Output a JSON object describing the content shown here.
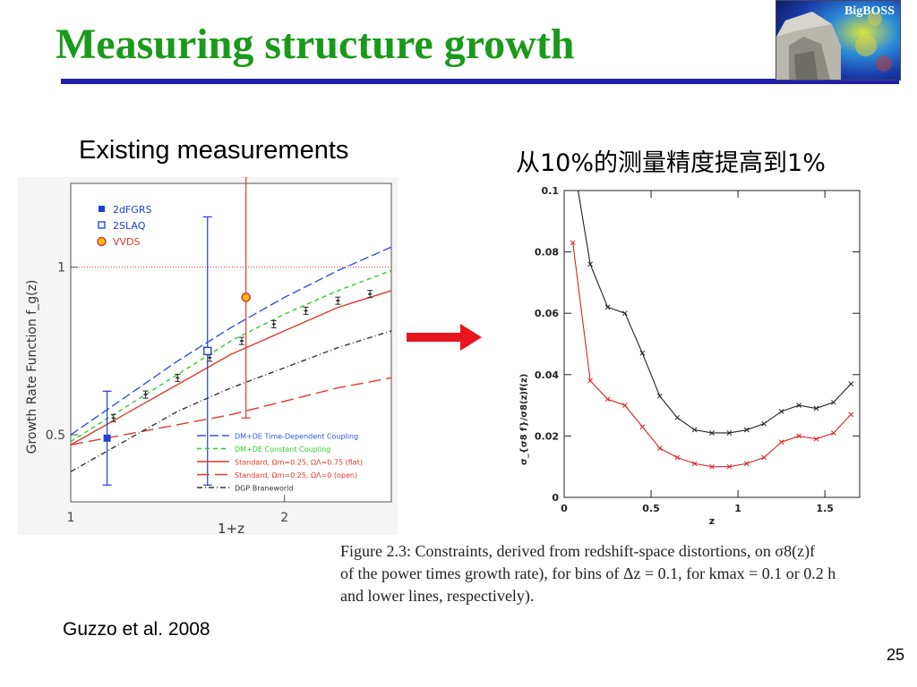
{
  "slide": {
    "title": "Measuring structure growth",
    "logo_text": "BigBOSS",
    "left_heading": "Existing measurements",
    "right_heading": "从10%的测量精度提高到1%",
    "caption_lines": [
      "Figure 2.3:  Constraints, derived from redshift-space distortions, on σ8(z)f",
      "of the power times growth rate), for bins of Δz = 0.1, for kmax = 0.1 or 0.2 h",
      "and lower lines, respectively)."
    ],
    "credit": "Guzzo et al. 2008",
    "page_number": "25"
  },
  "colors": {
    "title_green": "#1a9a1a",
    "rule_blue": "#1f1fa8",
    "arrow_red": "#e8141e",
    "model_blue": "#3355dd",
    "model_green": "#33cc33",
    "model_red": "#e0392b",
    "model_black": "#333333"
  },
  "chart_data": [
    {
      "type": "line",
      "xlabel": "1+z",
      "ylabel": "Growth Rate Function f_g(z)",
      "xlim": [
        1.0,
        2.5
      ],
      "ylim": [
        0.3,
        1.25
      ],
      "x_ticks": [
        1,
        2
      ],
      "y_ticks": [
        0.5,
        1
      ],
      "reference_line": 1.0,
      "legend_markers": [
        {
          "name": "2dFGRS",
          "color": "#1f3fd6",
          "marker": "filled-square"
        },
        {
          "name": "2SLAQ",
          "color": "#1f3fd6",
          "marker": "open-square"
        },
        {
          "name": "VVDS",
          "color": "#e0392b",
          "marker": "filled-circle"
        }
      ],
      "legend_models": [
        "DM+DE Time-Dependent Coupling",
        "DM+DE Constant Coupling",
        "Standard, Ωm=0.25, ΩΛ=0.75 (flat)",
        "Standard, Ωm=0.25, ΩΛ=0 (open)",
        "DGP Braneworld"
      ],
      "points": [
        {
          "name": "2dFGRS",
          "x": 1.17,
          "y": 0.49,
          "err": 0.14
        },
        {
          "name": "2SLAQ",
          "x": 1.64,
          "y": 0.75,
          "err": 0.4
        },
        {
          "name": "VVDS",
          "x": 1.82,
          "y": 0.91,
          "err": 0.36
        }
      ],
      "series": [
        {
          "name": "DM+DE Time-Dependent Coupling",
          "x": [
            1.0,
            1.25,
            1.5,
            1.75,
            2.0,
            2.25,
            2.5
          ],
          "y": [
            0.5,
            0.61,
            0.72,
            0.82,
            0.91,
            0.99,
            1.06
          ]
        },
        {
          "name": "DM+DE Constant Coupling",
          "x": [
            1.0,
            1.25,
            1.5,
            1.75,
            2.0,
            2.25,
            2.5
          ],
          "y": [
            0.48,
            0.58,
            0.68,
            0.78,
            0.86,
            0.93,
            0.99
          ]
        },
        {
          "name": "Standard, Ωm=0.25, ΩΛ=0.75 (flat)",
          "x": [
            1.0,
            1.25,
            1.5,
            1.75,
            2.0,
            2.25,
            2.5
          ],
          "y": [
            0.47,
            0.56,
            0.65,
            0.74,
            0.81,
            0.88,
            0.93
          ]
        },
        {
          "name": "Standard, Ωm=0.25, ΩΛ=0 (open)",
          "x": [
            1.0,
            1.25,
            1.5,
            1.75,
            2.0,
            2.25,
            2.5
          ],
          "y": [
            0.47,
            0.5,
            0.53,
            0.56,
            0.6,
            0.64,
            0.67
          ]
        },
        {
          "name": "DGP Braneworld",
          "x": [
            1.0,
            1.25,
            1.5,
            1.75,
            2.0,
            2.25,
            2.5
          ],
          "y": [
            0.39,
            0.48,
            0.57,
            0.64,
            0.7,
            0.76,
            0.81
          ]
        }
      ],
      "forecast_points": {
        "x": [
          1.2,
          1.35,
          1.5,
          1.65,
          1.8,
          1.95,
          2.1,
          2.25,
          2.4
        ],
        "y": [
          0.55,
          0.62,
          0.67,
          0.73,
          0.78,
          0.83,
          0.87,
          0.9,
          0.92
        ]
      }
    },
    {
      "type": "line",
      "xlabel": "z",
      "ylabel": "σ_{σ8 f}/σ8(z)f(z)",
      "xlim": [
        0,
        1.7
      ],
      "ylim": [
        0,
        0.1
      ],
      "x_ticks": [
        0,
        0.5,
        1,
        1.5
      ],
      "x_tick_labels": [
        "0",
        "0.5",
        "1",
        "1.5"
      ],
      "y_ticks": [
        0,
        0.02,
        0.04,
        0.06,
        0.08,
        0.1
      ],
      "y_tick_labels": [
        "0",
        "0.02",
        "0.04",
        "0.06",
        "0.08",
        "0.1"
      ],
      "series": [
        {
          "color": "#222222",
          "x": [
            0.15,
            0.25,
            0.35,
            0.45,
            0.55,
            0.65,
            0.75,
            0.85,
            0.95,
            1.05,
            1.15,
            1.25,
            1.35,
            1.45,
            1.55,
            1.65
          ],
          "y": [
            0.076,
            0.062,
            0.06,
            0.047,
            0.033,
            0.026,
            0.022,
            0.021,
            0.021,
            0.022,
            0.024,
            0.028,
            0.03,
            0.029,
            0.031,
            0.037
          ]
        },
        {
          "color": "#dd2222",
          "x": [
            0.05,
            0.15,
            0.25,
            0.35,
            0.45,
            0.55,
            0.65,
            0.75,
            0.85,
            0.95,
            1.05,
            1.15,
            1.25,
            1.35,
            1.45,
            1.55,
            1.65
          ],
          "y": [
            0.083,
            0.038,
            0.032,
            0.03,
            0.023,
            0.016,
            0.013,
            0.011,
            0.01,
            0.01,
            0.011,
            0.013,
            0.018,
            0.02,
            0.019,
            0.021,
            0.027
          ]
        }
      ]
    }
  ]
}
